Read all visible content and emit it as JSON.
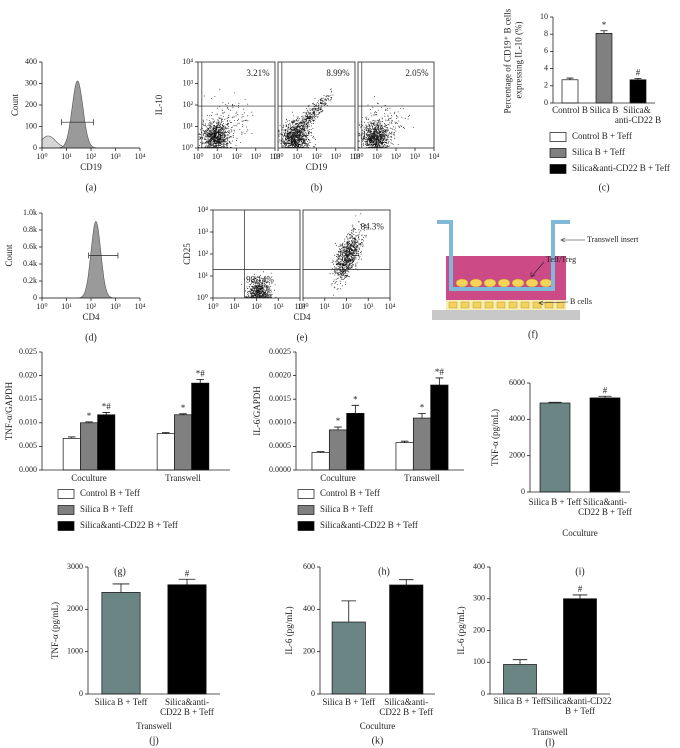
{
  "chart_data": [
    {
      "type": "flow-histogram",
      "panel": "(a)",
      "xlabel": "CD19",
      "ylabel": "Count",
      "xscale": "log",
      "xlim": [
        1,
        10000
      ],
      "xticks": [
        {
          "value": 1,
          "label": "10⁰"
        },
        {
          "value": 10,
          "label": "10¹"
        },
        {
          "value": 100,
          "label": "10²"
        },
        {
          "value": 1000,
          "label": "10³"
        },
        {
          "value": 10000,
          "label": "10⁴"
        }
      ],
      "ylim": [
        0,
        400
      ],
      "yticks": [
        0,
        100,
        200,
        300,
        400
      ]
    },
    {
      "type": "flow-dot",
      "ylabel": "IL-10",
      "annotation": "3.21%",
      "xscale": "log",
      "yscale": "log",
      "xlim": [
        1,
        10000
      ],
      "ylim": [
        1,
        10000
      ],
      "xticks": [
        {
          "value": 1,
          "label": "10⁰"
        },
        {
          "value": 10,
          "label": "10¹"
        },
        {
          "value": 100,
          "label": "10²"
        },
        {
          "value": 1000,
          "label": "10³"
        },
        {
          "value": 10000,
          "label": "10⁴"
        }
      ],
      "yticks": [
        {
          "value": 1,
          "label": "10⁰"
        },
        {
          "value": 10,
          "label": "10¹"
        },
        {
          "value": 100,
          "label": "10²"
        },
        {
          "value": 1000,
          "label": "10³"
        },
        {
          "value": 10000,
          "label": "10⁴"
        }
      ]
    },
    {
      "type": "flow-dot",
      "panel": "(b)",
      "xlabel": "CD19",
      "annotation": "8.99%",
      "xscale": "log",
      "yscale": "log",
      "xlim": [
        1,
        10000
      ],
      "ylim": [
        1,
        10000
      ],
      "xticks": [
        {
          "value": 1,
          "label": "10⁰"
        },
        {
          "value": 10,
          "label": "10¹"
        },
        {
          "value": 100,
          "label": "10²"
        },
        {
          "value": 1000,
          "label": "10³"
        },
        {
          "value": 10000,
          "label": "10⁴"
        }
      ]
    },
    {
      "type": "flow-dot",
      "annotation": "2.05%",
      "xscale": "log",
      "yscale": "log",
      "xlim": [
        1,
        10000
      ],
      "ylim": [
        1,
        10000
      ],
      "xticks": [
        {
          "value": 1,
          "label": "10⁰"
        },
        {
          "value": 10,
          "label": "10¹"
        },
        {
          "value": 100,
          "label": "10²"
        },
        {
          "value": 1000,
          "label": "10³"
        },
        {
          "value": 10000,
          "label": "10⁴"
        }
      ]
    },
    {
      "type": "bar",
      "panel": "(c)",
      "ylabel": "Percentage of CD19⁺ B cells expressing IL-10 (%)",
      "categories": [
        "Control B",
        "Silica B",
        "Silica& anti-CD22 B"
      ],
      "values": [
        2.7,
        8.1,
        2.7
      ],
      "errors": [
        0.2,
        0.3,
        0.15
      ],
      "annotations": [
        null,
        "*",
        "#"
      ],
      "colors": [
        "#ffffff",
        "#808080",
        "#000000"
      ],
      "legend": [
        "Control B + Teff",
        "Silica B + Teff",
        "Silica&anti-CD22 B + Teff"
      ],
      "ylim": [
        0,
        10
      ],
      "yticks": [
        0,
        2,
        4,
        6,
        8,
        10
      ]
    },
    {
      "type": "flow-histogram",
      "panel": "(d)",
      "xlabel": "CD4",
      "ylabel": "Count",
      "xscale": "log",
      "xlim": [
        1,
        10000
      ],
      "xticks": [
        {
          "value": 1,
          "label": "10⁰"
        },
        {
          "value": 10,
          "label": "10¹"
        },
        {
          "value": 100,
          "label": "10²"
        },
        {
          "value": 1000,
          "label": "10³"
        },
        {
          "value": 10000,
          "label": "10⁴"
        }
      ],
      "ylim": [
        0,
        1000
      ],
      "yticks": [
        0,
        {
          "value": 200,
          "label": "0.2k"
        },
        {
          "value": 400,
          "label": "0.4k"
        },
        {
          "value": 600,
          "label": "0.6k"
        },
        {
          "value": 800,
          "label": "0.8k"
        },
        {
          "value": 1000,
          "label": "1.0k"
        }
      ]
    },
    {
      "type": "flow-dot",
      "panel": "(e)",
      "xlabel": "CD4",
      "ylabel": "CD25",
      "annotation": "98.14%",
      "xscale": "log",
      "yscale": "log",
      "xlim": [
        1,
        10000
      ],
      "ylim": [
        1,
        10000
      ],
      "xticks": [
        {
          "value": 1,
          "label": "10⁰"
        },
        {
          "value": 10,
          "label": "10¹"
        },
        {
          "value": 100,
          "label": "10²"
        },
        {
          "value": 1000,
          "label": "10³"
        },
        {
          "value": 10000,
          "label": "10⁴"
        }
      ],
      "yticks": [
        {
          "value": 1,
          "label": "10⁰"
        },
        {
          "value": 10,
          "label": "10¹"
        },
        {
          "value": 100,
          "label": "10²"
        },
        {
          "value": 1000,
          "label": "10³"
        },
        {
          "value": 10000,
          "label": "10⁴"
        }
      ]
    },
    {
      "type": "flow-dot",
      "annotation": "84.3%",
      "xscale": "log",
      "yscale": "log",
      "xlim": [
        1,
        10000
      ],
      "ylim": [
        1,
        10000
      ],
      "xticks": [
        {
          "value": 1,
          "label": "10⁰"
        },
        {
          "value": 10,
          "label": "10¹"
        },
        {
          "value": 100,
          "label": "10²"
        },
        {
          "value": 1000,
          "label": "10³"
        },
        {
          "value": 10000,
          "label": "10⁴"
        }
      ]
    },
    {
      "type": "grouped-bar",
      "panel": "(g)",
      "ylabel": "TNF-α/GAPDH",
      "categories": [
        "Coculture",
        "Transwell"
      ],
      "series": [
        {
          "name": "Control B + Teff",
          "color": "#ffffff",
          "values": [
            0.0067,
            0.0077
          ],
          "errors": [
            0.0003,
            0.0002
          ]
        },
        {
          "name": "Silica B + Teff",
          "color": "#808080",
          "values": [
            0.01,
            0.0117
          ],
          "errors": [
            0.0002,
            0.0002
          ],
          "annotations": [
            "*",
            "*"
          ]
        },
        {
          "name": "Silica&anti-CD22 B + Teff",
          "color": "#000000",
          "values": [
            0.0117,
            0.0184
          ],
          "errors": [
            0.0005,
            0.0008
          ],
          "annotations": [
            "*#",
            "*#"
          ]
        }
      ],
      "ylim": [
        0,
        0.025
      ],
      "yticks": [
        {
          "value": 0,
          "label": "0.000"
        },
        0.005,
        {
          "value": 0.01,
          "label": "0.010"
        },
        0.015,
        {
          "value": 0.02,
          "label": "0.020"
        },
        0.025
      ]
    },
    {
      "type": "grouped-bar",
      "panel": "(h)",
      "ylabel": "IL-6/GAPDH",
      "categories": [
        "Coculture",
        "Transwell"
      ],
      "series": [
        {
          "name": "Control B + Teff",
          "color": "#ffffff",
          "values": [
            0.00037,
            0.00058
          ],
          "errors": [
            2e-05,
            3e-05
          ]
        },
        {
          "name": "Silica B + Teff",
          "color": "#808080",
          "values": [
            0.00085,
            0.0011
          ],
          "errors": [
            6e-05,
            0.0001
          ],
          "annotations": [
            "*",
            "*"
          ]
        },
        {
          "name": "Silica&anti-CD22 B + Teff",
          "color": "#000000",
          "values": [
            0.0012,
            0.0018
          ],
          "errors": [
            0.00017,
            0.00015
          ],
          "annotations": [
            "*",
            "*#"
          ]
        }
      ],
      "ylim": [
        0,
        0.0025
      ],
      "yticks": [
        {
          "value": 0,
          "label": "0.0000"
        },
        0.0005,
        {
          "value": 0.001,
          "label": "0.0010"
        },
        0.0015,
        {
          "value": 0.002,
          "label": "0.0020"
        },
        0.0025
      ]
    },
    {
      "type": "bar",
      "panel": "(i)",
      "ylabel": "TNF-α (pg/mL)",
      "xlabel": "Coculture",
      "categories": [
        "Silica B + Teff",
        "Silica&anti-CD22 B + Teff"
      ],
      "values": [
        4900,
        5180
      ],
      "errors": [
        40,
        90
      ],
      "annotations": [
        null,
        "#"
      ],
      "colors": [
        "#6b8584",
        "#000000"
      ],
      "ylim": [
        0,
        6000
      ],
      "yticks": [
        0,
        2000,
        4000,
        6000
      ]
    },
    {
      "type": "bar",
      "panel": "(j)",
      "ylabel": "TNF-α (pg/mL)",
      "xlabel": "Transwell",
      "categories": [
        "Silica B + Teff",
        "Silica&anti-CD22 B + Teff"
      ],
      "values": [
        2400,
        2580
      ],
      "errors": [
        200,
        130
      ],
      "annotations": [
        null,
        "#"
      ],
      "colors": [
        "#6b8584",
        "#000000"
      ],
      "ylim": [
        0,
        3000
      ],
      "yticks": [
        0,
        1000,
        2000,
        3000
      ]
    },
    {
      "type": "bar",
      "panel": "(k)",
      "ylabel": "IL-6 (pg/mL)",
      "xlabel": "Coculture",
      "categories": [
        "Silica B + Teff",
        "Silica&anti-CD22 B + Teff"
      ],
      "values": [
        340,
        515
      ],
      "errors": [
        100,
        25
      ],
      "colors": [
        "#6b8584",
        "#000000"
      ],
      "ylim": [
        0,
        600
      ],
      "yticks": [
        0,
        200,
        400,
        600
      ]
    },
    {
      "type": "bar",
      "panel": "(l)",
      "ylabel": "IL-6 (pg/mL)",
      "xlabel": "Transwell",
      "categories": [
        "Silica B + Teff",
        "Silica&anti-CD22 B + Teff"
      ],
      "values": [
        93,
        300
      ],
      "errors": [
        15,
        12
      ],
      "annotations": [
        null,
        "#"
      ],
      "colors": [
        "#6b8584",
        "#000000"
      ],
      "ylim": [
        0,
        400
      ],
      "yticks": [
        0,
        100,
        200,
        300,
        400
      ]
    }
  ],
  "diagram": {
    "panel": "(f)",
    "labels": [
      "Transwell insert",
      "Teff/Treg",
      "B cells"
    ]
  }
}
